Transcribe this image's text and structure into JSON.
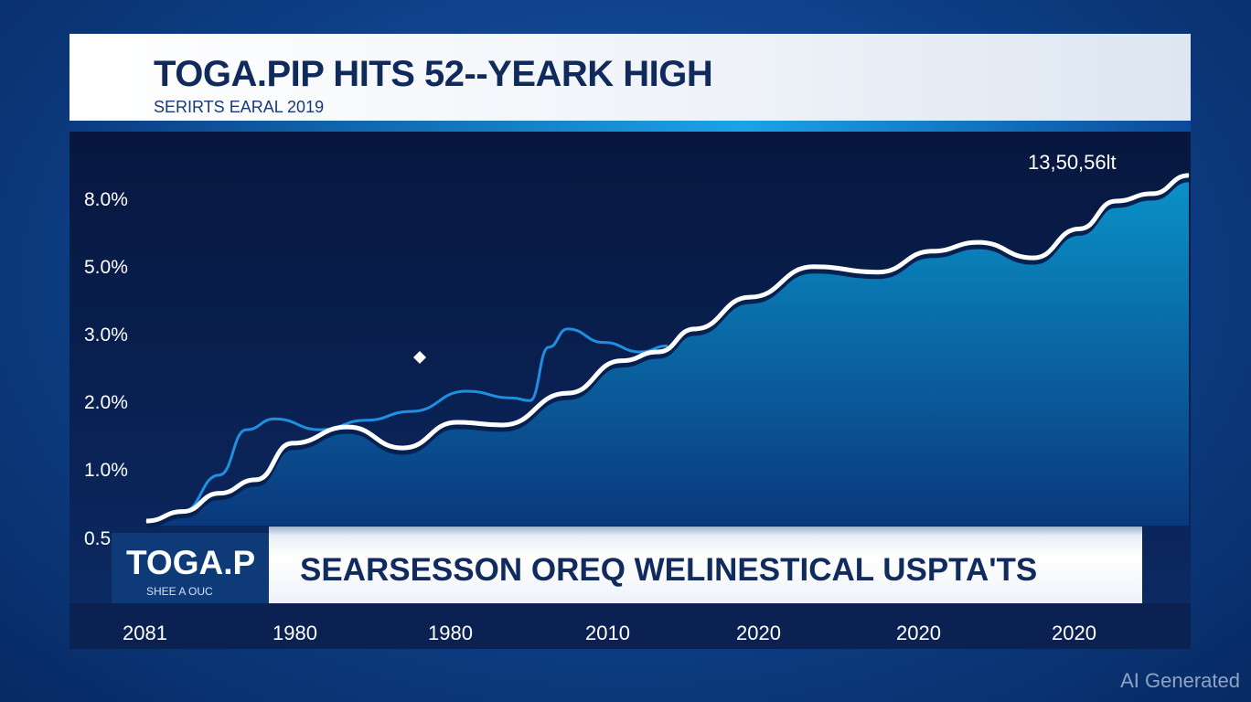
{
  "header": {
    "title": "TOGA.PIP HITS 52--YEARK HIGH",
    "subtitle": "SERIRTS EARAL 2019"
  },
  "lower_third": {
    "ticker": "TOGA.P",
    "ticker_sub": "SHEE A OUC",
    "banner": "SEARSESSON OREQ WELINESTICAL USPTA'TS"
  },
  "watermark": "AI Generated",
  "chart_data": {
    "type": "area",
    "title": "TOGA.PIP HITS 52--YEARK HIGH",
    "peak_label": "13,50,56lt",
    "y_tick_labels": [
      "0.5",
      "1.0%",
      "2.0%",
      "3.0%",
      "5.0%",
      "8.0%"
    ],
    "x_tick_labels": [
      "2081",
      "1980",
      "1980",
      "2010",
      "2020",
      "2020",
      "2020"
    ],
    "note": "y values expressed in tick-index units (0=0.5,1=1.0%,2=2.0%,3=3.0%,4=5.0%,5=8.0%); x is time index 0-100",
    "series": [
      {
        "name": "main",
        "color": "#ffffff",
        "x": [
          0,
          3.5,
          7,
          10.5,
          14,
          19.3,
          24.6,
          29.8,
          34.2,
          40.4,
          45.6,
          49.1,
          52.6,
          57.9,
          64,
          70.2,
          75.4,
          79.8,
          85.1,
          89.5,
          93,
          96.5,
          100
        ],
        "y": [
          0.27,
          0.41,
          0.68,
          0.88,
          1.42,
          1.66,
          1.35,
          1.73,
          1.69,
          2.16,
          2.64,
          2.77,
          3.11,
          3.58,
          4.03,
          3.95,
          4.26,
          4.39,
          4.16,
          4.59,
          5.0,
          5.11,
          5.38
        ]
      },
      {
        "name": "secondary",
        "color": "#1f8fe0",
        "x": [
          3.5,
          7,
          9.6,
          12.3,
          16.7,
          21.1,
          25.4,
          30.7,
          35.1,
          36.8,
          38.6,
          40.4,
          43.9,
          47.4,
          50
        ],
        "y": [
          0.41,
          0.95,
          1.62,
          1.78,
          1.62,
          1.76,
          1.89,
          2.19,
          2.09,
          2.05,
          2.84,
          3.11,
          2.91,
          2.77,
          2.86
        ]
      }
    ],
    "colors": {
      "fill_top": "#0aa0d8",
      "fill_bottom": "#0a3a80"
    }
  }
}
